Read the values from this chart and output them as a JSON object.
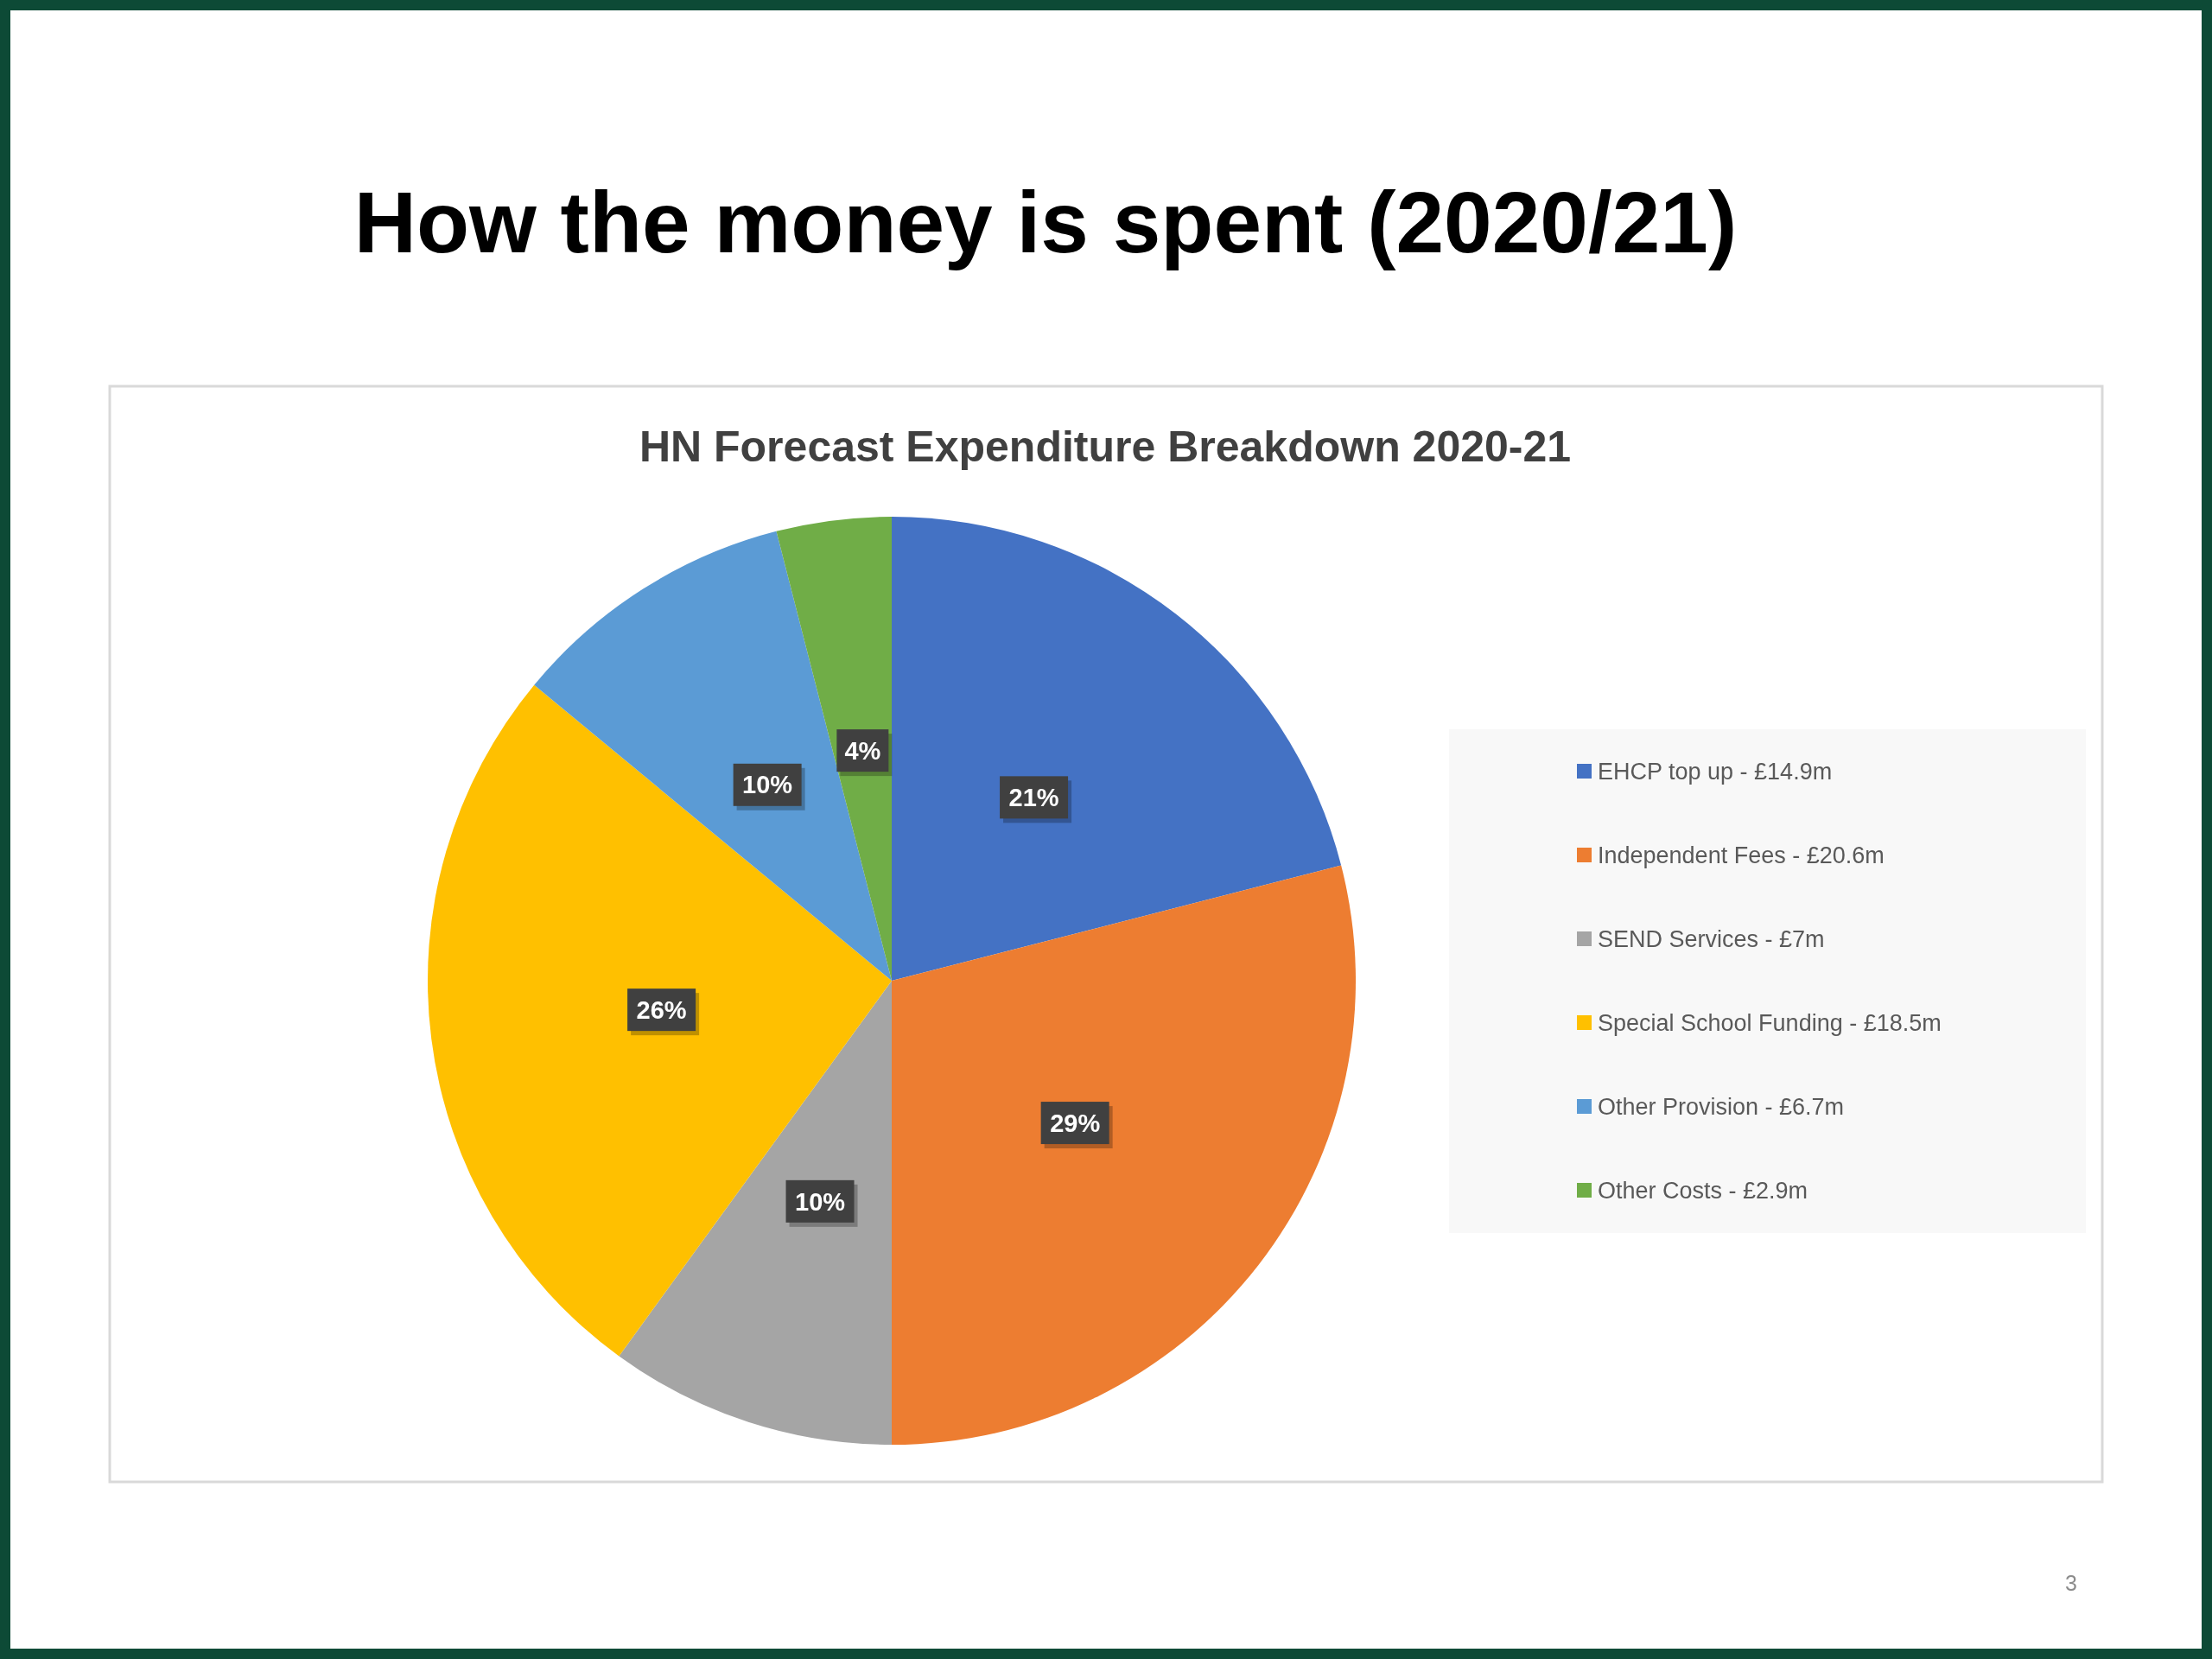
{
  "chart_data": {
    "type": "pie",
    "title": "How the money is spent (2020/21)",
    "subtitle": "HN Forecast Expenditure Breakdown 2020-21",
    "categories": [
      "EHCP top up - £14.9m",
      "Independent Fees - £20.6m",
      "SEND Services - £7m",
      "Special School Funding - £18.5m",
      "Other Provision - £6.7m",
      "Other Costs - £2.9m"
    ],
    "values": [
      21,
      29,
      10,
      26,
      10,
      4
    ],
    "colors": [
      "#4472c4",
      "#ed7d31",
      "#a5a5a5",
      "#ffc000",
      "#5b9bd5",
      "#70ad47"
    ],
    "value_labels": [
      "21%",
      "29%",
      "10%",
      "26%",
      "10%",
      "4%"
    ],
    "legend": "right",
    "annotations": [
      "3"
    ]
  }
}
